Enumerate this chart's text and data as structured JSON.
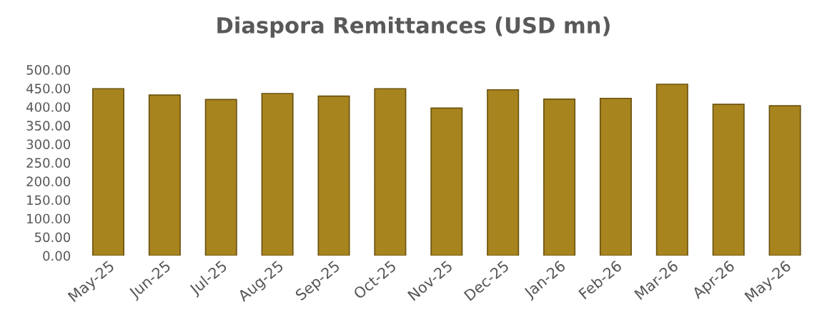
{
  "chart_data": {
    "type": "bar",
    "title": "Diaspora Remittances (USD mn)",
    "categories": [
      "May-25",
      "Jun-25",
      "Jul-25",
      "Aug-25",
      "Sep-25",
      "Oct-25",
      "Nov-25",
      "Dec-25",
      "Jan-26",
      "Feb-26",
      "Mar-26",
      "Apr-26",
      "May-26"
    ],
    "values": [
      449,
      432,
      420,
      436,
      429,
      449,
      397,
      446,
      421,
      423,
      461,
      407,
      403
    ],
    "color": "#a8841f",
    "ylim": [
      0,
      500
    ],
    "yticks": [
      {
        "value": 0,
        "label": "0.00"
      },
      {
        "value": 50,
        "label": "50.00"
      },
      {
        "value": 100,
        "label": "100.00"
      },
      {
        "value": 150,
        "label": "150.00"
      },
      {
        "value": 200,
        "label": "200.00"
      },
      {
        "value": 250,
        "label": "250.00"
      },
      {
        "value": 300,
        "label": "300.00"
      },
      {
        "value": 350,
        "label": "350.00"
      },
      {
        "value": 400,
        "label": "400.00"
      },
      {
        "value": 450,
        "label": "450.00"
      },
      {
        "value": 500,
        "label": "500.00"
      }
    ],
    "grid": false
  }
}
